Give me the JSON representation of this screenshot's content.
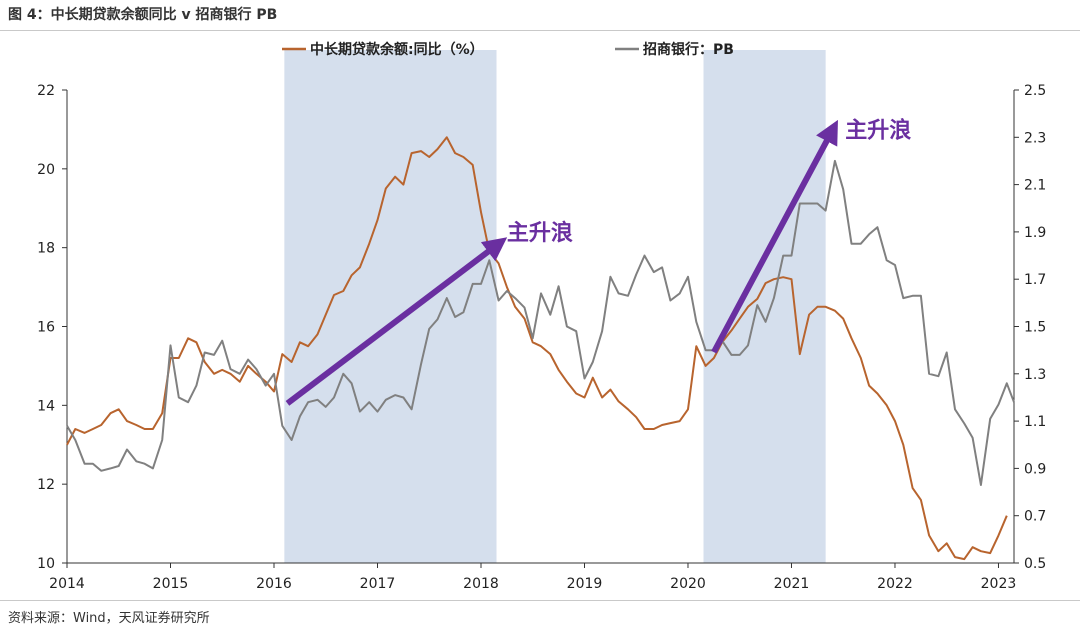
{
  "figure": {
    "title": "图 4：中长期贷款余额同比 v 招商银行 PB",
    "source": "资料来源：Wind，天风证券研究所"
  },
  "chart_data": {
    "type": "line",
    "x_ticks": [
      "2014",
      "2015",
      "2016",
      "2017",
      "2018",
      "2019",
      "2020",
      "2021",
      "2022",
      "2023"
    ],
    "x_range": [
      2014.0,
      2023.15
    ],
    "y_left": {
      "ticks": [
        "10",
        "12",
        "14",
        "16",
        "18",
        "20",
        "22"
      ],
      "range": [
        10,
        22
      ]
    },
    "y_right": {
      "ticks": [
        "0.5",
        "0.7",
        "0.9",
        "1.1",
        "1.3",
        "1.5",
        "1.7",
        "1.9",
        "2.1",
        "2.3",
        "2.5"
      ],
      "range": [
        0.5,
        2.5
      ]
    },
    "legend_position": "top-center",
    "grid": false,
    "shaded_periods": [
      [
        2016.1,
        2018.15
      ],
      [
        2020.15,
        2021.33
      ]
    ],
    "annotations": [
      {
        "text": "主升浪",
        "from": [
          2016.13,
          14.05
        ],
        "to": [
          2018.17,
          18.1
        ],
        "label_at": [
          2018.25,
          18.4
        ]
      },
      {
        "text": "主升浪",
        "from": [
          2020.25,
          15.35
        ],
        "to": [
          2021.4,
          21.0
        ],
        "label_at": [
          2021.52,
          21.0
        ]
      }
    ],
    "colors": {
      "loan": "#b8642e",
      "pb": "#808080",
      "shade": "#d5dfed",
      "arrow": "#6a2fa0"
    },
    "series": [
      {
        "name": "中长期贷款余额:同比（%）",
        "axis": "left",
        "points": [
          [
            2014.0,
            13.0
          ],
          [
            2014.08,
            13.4
          ],
          [
            2014.17,
            13.3
          ],
          [
            2014.25,
            13.4
          ],
          [
            2014.33,
            13.5
          ],
          [
            2014.42,
            13.8
          ],
          [
            2014.5,
            13.9
          ],
          [
            2014.58,
            13.6
          ],
          [
            2014.67,
            13.5
          ],
          [
            2014.75,
            13.4
          ],
          [
            2014.83,
            13.4
          ],
          [
            2014.92,
            13.8
          ],
          [
            2015.0,
            15.2
          ],
          [
            2015.08,
            15.2
          ],
          [
            2015.17,
            15.7
          ],
          [
            2015.25,
            15.6
          ],
          [
            2015.33,
            15.1
          ],
          [
            2015.42,
            14.8
          ],
          [
            2015.5,
            14.9
          ],
          [
            2015.58,
            14.8
          ],
          [
            2015.67,
            14.6
          ],
          [
            2015.75,
            15.0
          ],
          [
            2015.83,
            14.8
          ],
          [
            2015.92,
            14.6
          ],
          [
            2016.0,
            14.35
          ],
          [
            2016.08,
            15.3
          ],
          [
            2016.17,
            15.1
          ],
          [
            2016.25,
            15.6
          ],
          [
            2016.33,
            15.5
          ],
          [
            2016.42,
            15.8
          ],
          [
            2016.5,
            16.3
          ],
          [
            2016.58,
            16.8
          ],
          [
            2016.67,
            16.9
          ],
          [
            2016.75,
            17.3
          ],
          [
            2016.83,
            17.5
          ],
          [
            2016.92,
            18.1
          ],
          [
            2017.0,
            18.7
          ],
          [
            2017.08,
            19.5
          ],
          [
            2017.17,
            19.8
          ],
          [
            2017.25,
            19.6
          ],
          [
            2017.33,
            20.4
          ],
          [
            2017.42,
            20.45
          ],
          [
            2017.5,
            20.3
          ],
          [
            2017.58,
            20.5
          ],
          [
            2017.67,
            20.8
          ],
          [
            2017.75,
            20.4
          ],
          [
            2017.83,
            20.3
          ],
          [
            2017.92,
            20.1
          ],
          [
            2018.0,
            18.9
          ],
          [
            2018.08,
            17.9
          ],
          [
            2018.17,
            17.6
          ],
          [
            2018.25,
            17.0
          ],
          [
            2018.33,
            16.5
          ],
          [
            2018.42,
            16.2
          ],
          [
            2018.5,
            15.6
          ],
          [
            2018.58,
            15.5
          ],
          [
            2018.67,
            15.3
          ],
          [
            2018.75,
            14.9
          ],
          [
            2018.83,
            14.6
          ],
          [
            2018.92,
            14.3
          ],
          [
            2019.0,
            14.2
          ],
          [
            2019.08,
            14.7
          ],
          [
            2019.17,
            14.2
          ],
          [
            2019.25,
            14.4
          ],
          [
            2019.33,
            14.1
          ],
          [
            2019.42,
            13.9
          ],
          [
            2019.5,
            13.7
          ],
          [
            2019.58,
            13.4
          ],
          [
            2019.67,
            13.4
          ],
          [
            2019.75,
            13.5
          ],
          [
            2019.83,
            13.55
          ],
          [
            2019.92,
            13.6
          ],
          [
            2020.0,
            13.9
          ],
          [
            2020.08,
            15.5
          ],
          [
            2020.17,
            15.0
          ],
          [
            2020.25,
            15.2
          ],
          [
            2020.33,
            15.6
          ],
          [
            2020.42,
            15.9
          ],
          [
            2020.5,
            16.2
          ],
          [
            2020.58,
            16.5
          ],
          [
            2020.67,
            16.7
          ],
          [
            2020.75,
            17.1
          ],
          [
            2020.83,
            17.2
          ],
          [
            2020.92,
            17.25
          ],
          [
            2021.0,
            17.2
          ],
          [
            2021.08,
            15.3
          ],
          [
            2021.17,
            16.3
          ],
          [
            2021.25,
            16.5
          ],
          [
            2021.33,
            16.5
          ],
          [
            2021.42,
            16.4
          ],
          [
            2021.5,
            16.2
          ],
          [
            2021.58,
            15.7
          ],
          [
            2021.67,
            15.2
          ],
          [
            2021.75,
            14.5
          ],
          [
            2021.83,
            14.3
          ],
          [
            2021.92,
            14.0
          ],
          [
            2022.0,
            13.6
          ],
          [
            2022.08,
            13.0
          ],
          [
            2022.17,
            11.9
          ],
          [
            2022.25,
            11.6
          ],
          [
            2022.33,
            10.7
          ],
          [
            2022.42,
            10.3
          ],
          [
            2022.5,
            10.5
          ],
          [
            2022.58,
            10.15
          ],
          [
            2022.67,
            10.1
          ],
          [
            2022.75,
            10.4
          ],
          [
            2022.83,
            10.3
          ],
          [
            2022.92,
            10.25
          ],
          [
            2023.0,
            10.7
          ],
          [
            2023.08,
            11.2
          ]
        ]
      },
      {
        "name": "招商银行：PB",
        "axis": "right",
        "points": [
          [
            2014.0,
            1.08
          ],
          [
            2014.08,
            1.02
          ],
          [
            2014.17,
            0.92
          ],
          [
            2014.25,
            0.92
          ],
          [
            2014.33,
            0.89
          ],
          [
            2014.42,
            0.9
          ],
          [
            2014.5,
            0.91
          ],
          [
            2014.58,
            0.98
          ],
          [
            2014.67,
            0.93
          ],
          [
            2014.75,
            0.92
          ],
          [
            2014.83,
            0.9
          ],
          [
            2014.92,
            1.02
          ],
          [
            2015.0,
            1.42
          ],
          [
            2015.08,
            1.2
          ],
          [
            2015.17,
            1.18
          ],
          [
            2015.25,
            1.25
          ],
          [
            2015.33,
            1.39
          ],
          [
            2015.42,
            1.38
          ],
          [
            2015.5,
            1.44
          ],
          [
            2015.58,
            1.32
          ],
          [
            2015.67,
            1.3
          ],
          [
            2015.75,
            1.36
          ],
          [
            2015.83,
            1.32
          ],
          [
            2015.92,
            1.25
          ],
          [
            2016.0,
            1.3
          ],
          [
            2016.08,
            1.08
          ],
          [
            2016.17,
            1.02
          ],
          [
            2016.25,
            1.12
          ],
          [
            2016.33,
            1.18
          ],
          [
            2016.42,
            1.19
          ],
          [
            2016.5,
            1.16
          ],
          [
            2016.58,
            1.2
          ],
          [
            2016.67,
            1.3
          ],
          [
            2016.75,
            1.26
          ],
          [
            2016.83,
            1.14
          ],
          [
            2016.92,
            1.18
          ],
          [
            2017.0,
            1.14
          ],
          [
            2017.08,
            1.19
          ],
          [
            2017.17,
            1.21
          ],
          [
            2017.25,
            1.2
          ],
          [
            2017.33,
            1.15
          ],
          [
            2017.42,
            1.34
          ],
          [
            2017.5,
            1.49
          ],
          [
            2017.58,
            1.53
          ],
          [
            2017.67,
            1.62
          ],
          [
            2017.75,
            1.54
          ],
          [
            2017.83,
            1.56
          ],
          [
            2017.92,
            1.68
          ],
          [
            2018.0,
            1.68
          ],
          [
            2018.08,
            1.78
          ],
          [
            2018.17,
            1.61
          ],
          [
            2018.25,
            1.65
          ],
          [
            2018.33,
            1.62
          ],
          [
            2018.42,
            1.58
          ],
          [
            2018.5,
            1.45
          ],
          [
            2018.58,
            1.64
          ],
          [
            2018.67,
            1.55
          ],
          [
            2018.75,
            1.67
          ],
          [
            2018.83,
            1.5
          ],
          [
            2018.92,
            1.48
          ],
          [
            2019.0,
            1.28
          ],
          [
            2019.08,
            1.35
          ],
          [
            2019.17,
            1.48
          ],
          [
            2019.25,
            1.71
          ],
          [
            2019.33,
            1.64
          ],
          [
            2019.42,
            1.63
          ],
          [
            2019.5,
            1.72
          ],
          [
            2019.58,
            1.8
          ],
          [
            2019.67,
            1.73
          ],
          [
            2019.75,
            1.75
          ],
          [
            2019.83,
            1.61
          ],
          [
            2019.92,
            1.64
          ],
          [
            2020.0,
            1.71
          ],
          [
            2020.08,
            1.52
          ],
          [
            2020.17,
            1.4
          ],
          [
            2020.25,
            1.4
          ],
          [
            2020.33,
            1.44
          ],
          [
            2020.42,
            1.38
          ],
          [
            2020.5,
            1.38
          ],
          [
            2020.58,
            1.42
          ],
          [
            2020.67,
            1.59
          ],
          [
            2020.75,
            1.52
          ],
          [
            2020.83,
            1.62
          ],
          [
            2020.92,
            1.8
          ],
          [
            2021.0,
            1.8
          ],
          [
            2021.08,
            2.02
          ],
          [
            2021.17,
            2.02
          ],
          [
            2021.25,
            2.02
          ],
          [
            2021.33,
            1.99
          ],
          [
            2021.42,
            2.2
          ],
          [
            2021.5,
            2.08
          ],
          [
            2021.58,
            1.85
          ],
          [
            2021.67,
            1.85
          ],
          [
            2021.75,
            1.89
          ],
          [
            2021.83,
            1.92
          ],
          [
            2021.92,
            1.78
          ],
          [
            2022.0,
            1.76
          ],
          [
            2022.08,
            1.62
          ],
          [
            2022.17,
            1.63
          ],
          [
            2022.25,
            1.63
          ],
          [
            2022.33,
            1.3
          ],
          [
            2022.42,
            1.29
          ],
          [
            2022.5,
            1.39
          ],
          [
            2022.58,
            1.15
          ],
          [
            2022.67,
            1.09
          ],
          [
            2022.75,
            1.03
          ],
          [
            2022.83,
            0.83
          ],
          [
            2022.92,
            1.11
          ],
          [
            2023.0,
            1.17
          ],
          [
            2023.08,
            1.26
          ],
          [
            2023.15,
            1.18
          ]
        ]
      }
    ]
  }
}
